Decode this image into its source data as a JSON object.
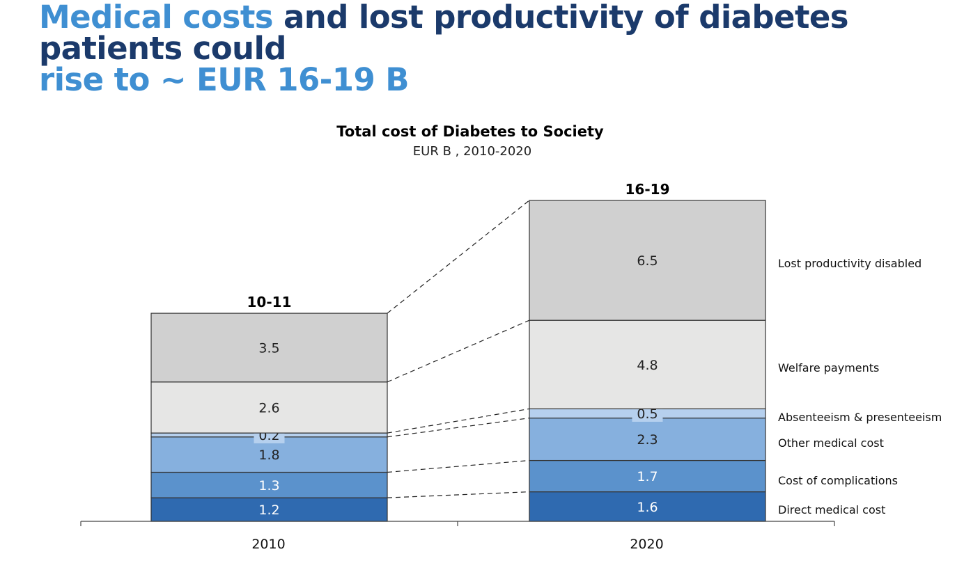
{
  "headline": {
    "highlight": "Medical costs",
    "rest_line1": " and lost productivity of diabetes patients could",
    "line2_highlight": "rise to ~ EUR 16-19 B"
  },
  "chart_data": {
    "type": "bar",
    "stacked": true,
    "title": "Total cost of Diabetes to Society",
    "subtitle": "EUR B  , 2010-2020",
    "categories": [
      "2010",
      "2020"
    ],
    "totals": [
      "10-11",
      "16-19"
    ],
    "series": [
      {
        "name": "Direct medical cost",
        "values": [
          1.2,
          1.6
        ],
        "labels": [
          "1.2",
          "1.6"
        ],
        "color": "#2f6ab0",
        "text_color": "#ffffff"
      },
      {
        "name": "Cost of complications",
        "values": [
          1.3,
          1.7
        ],
        "labels": [
          "1.3",
          "1.7"
        ],
        "color": "#5b92cc",
        "text_color": "#ffffff"
      },
      {
        "name": "Other medical cost",
        "values": [
          1.8,
          2.3
        ],
        "labels": [
          "1.8",
          "2.3"
        ],
        "color": "#86b0de",
        "text_color": "#222222"
      },
      {
        "name": "Absenteeism & presenteeism",
        "values": [
          0.2,
          0.5
        ],
        "labels": [
          "0.2",
          "0.5"
        ],
        "color": "#b6d0ee",
        "text_color": "#222222"
      },
      {
        "name": "Welfare payments",
        "values": [
          2.6,
          4.8
        ],
        "labels": [
          "2.6",
          "4.8"
        ],
        "color": "#e6e6e5",
        "text_color": "#222222"
      },
      {
        "name": "Lost productivity disabled",
        "values": [
          3.5,
          6.5
        ],
        "labels": [
          "3.5",
          "6.5"
        ],
        "color": "#d0d0d0",
        "text_color": "#222222"
      }
    ],
    "legend_position": "right",
    "grid": false
  }
}
